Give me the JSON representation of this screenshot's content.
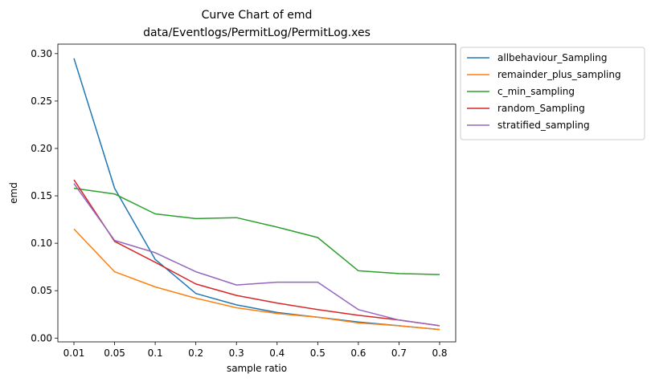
{
  "chart_data": {
    "type": "line",
    "title": "Curve Chart of emd",
    "subtitle": "data/Eventlogs/PermitLog/PermitLog.xes",
    "xlabel": "sample ratio",
    "ylabel": "emd",
    "categories": [
      "0.01",
      "0.05",
      "0.1",
      "0.2",
      "0.3",
      "0.4",
      "0.5",
      "0.6",
      "0.7",
      "0.8"
    ],
    "ylim": [
      -0.004,
      0.31
    ],
    "yticks": [
      0.0,
      0.05,
      0.1,
      0.15,
      0.2,
      0.25,
      0.3
    ],
    "ytick_labels": [
      "0.00",
      "0.05",
      "0.10",
      "0.15",
      "0.20",
      "0.25",
      "0.30"
    ],
    "grid": false,
    "legend_position": "outside-right-top",
    "series": [
      {
        "name": "allbehaviour_Sampling",
        "color": "#1f77b4",
        "values": [
          0.295,
          0.158,
          0.083,
          0.047,
          0.035,
          0.027,
          0.022,
          0.017,
          0.013,
          0.009
        ]
      },
      {
        "name": "remainder_plus_sampling",
        "color": "#ff7f0e",
        "values": [
          0.115,
          0.07,
          0.054,
          0.042,
          0.032,
          0.026,
          0.022,
          0.016,
          0.013,
          0.009
        ]
      },
      {
        "name": "c_min_sampling",
        "color": "#2ca02c",
        "values": [
          0.158,
          0.152,
          0.131,
          0.126,
          0.127,
          0.117,
          0.106,
          0.071,
          0.068,
          0.067
        ]
      },
      {
        "name": "random_Sampling",
        "color": "#d62728",
        "values": [
          0.167,
          0.102,
          0.08,
          0.057,
          0.045,
          0.037,
          0.03,
          0.024,
          0.019,
          0.013
        ]
      },
      {
        "name": "stratified_sampling",
        "color": "#9467bd",
        "values": [
          0.163,
          0.103,
          0.09,
          0.07,
          0.056,
          0.059,
          0.059,
          0.03,
          0.019,
          0.013
        ]
      }
    ]
  }
}
